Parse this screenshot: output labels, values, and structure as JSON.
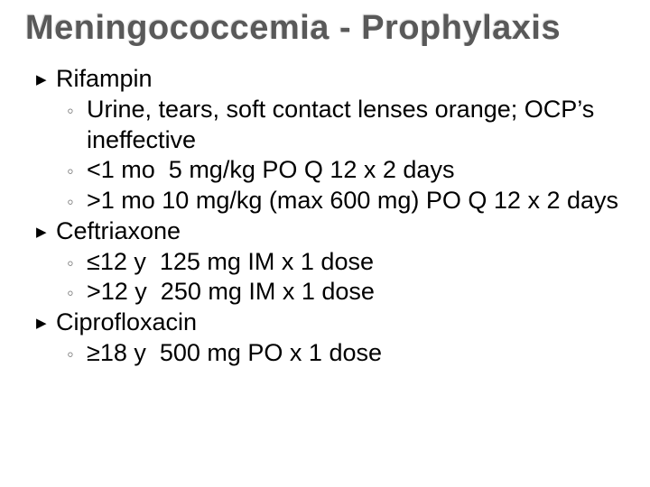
{
  "title": "Meningococcemia - Prophylaxis",
  "typography": {
    "title_font_family": "Trebuchet MS",
    "title_font_size_pt": 38,
    "title_font_weight": "bold",
    "title_color": "#595959",
    "body_font_family": "Lucida Sans",
    "body_font_size_pt": 27,
    "body_color": "#000000",
    "sub_bullet_color": "#808080",
    "background_color": "#ffffff"
  },
  "items": [
    {
      "label": "Rifampin",
      "sub": [
        "Urine, tears, soft contact lenses orange; OCP’s ineffective",
        "<1 mo  5 mg/kg PO Q 12 x 2 days",
        ">1 mo 10 mg/kg (max 600 mg) PO Q 12 x 2 days"
      ]
    },
    {
      "label": "Ceftriaxone",
      "sub": [
        "≤12 y  125 mg IM x 1 dose",
        ">12 y  250 mg IM x 1 dose"
      ]
    },
    {
      "label": "Ciprofloxacin",
      "sub": [
        "≥18 y  500 mg PO x 1 dose"
      ]
    }
  ]
}
